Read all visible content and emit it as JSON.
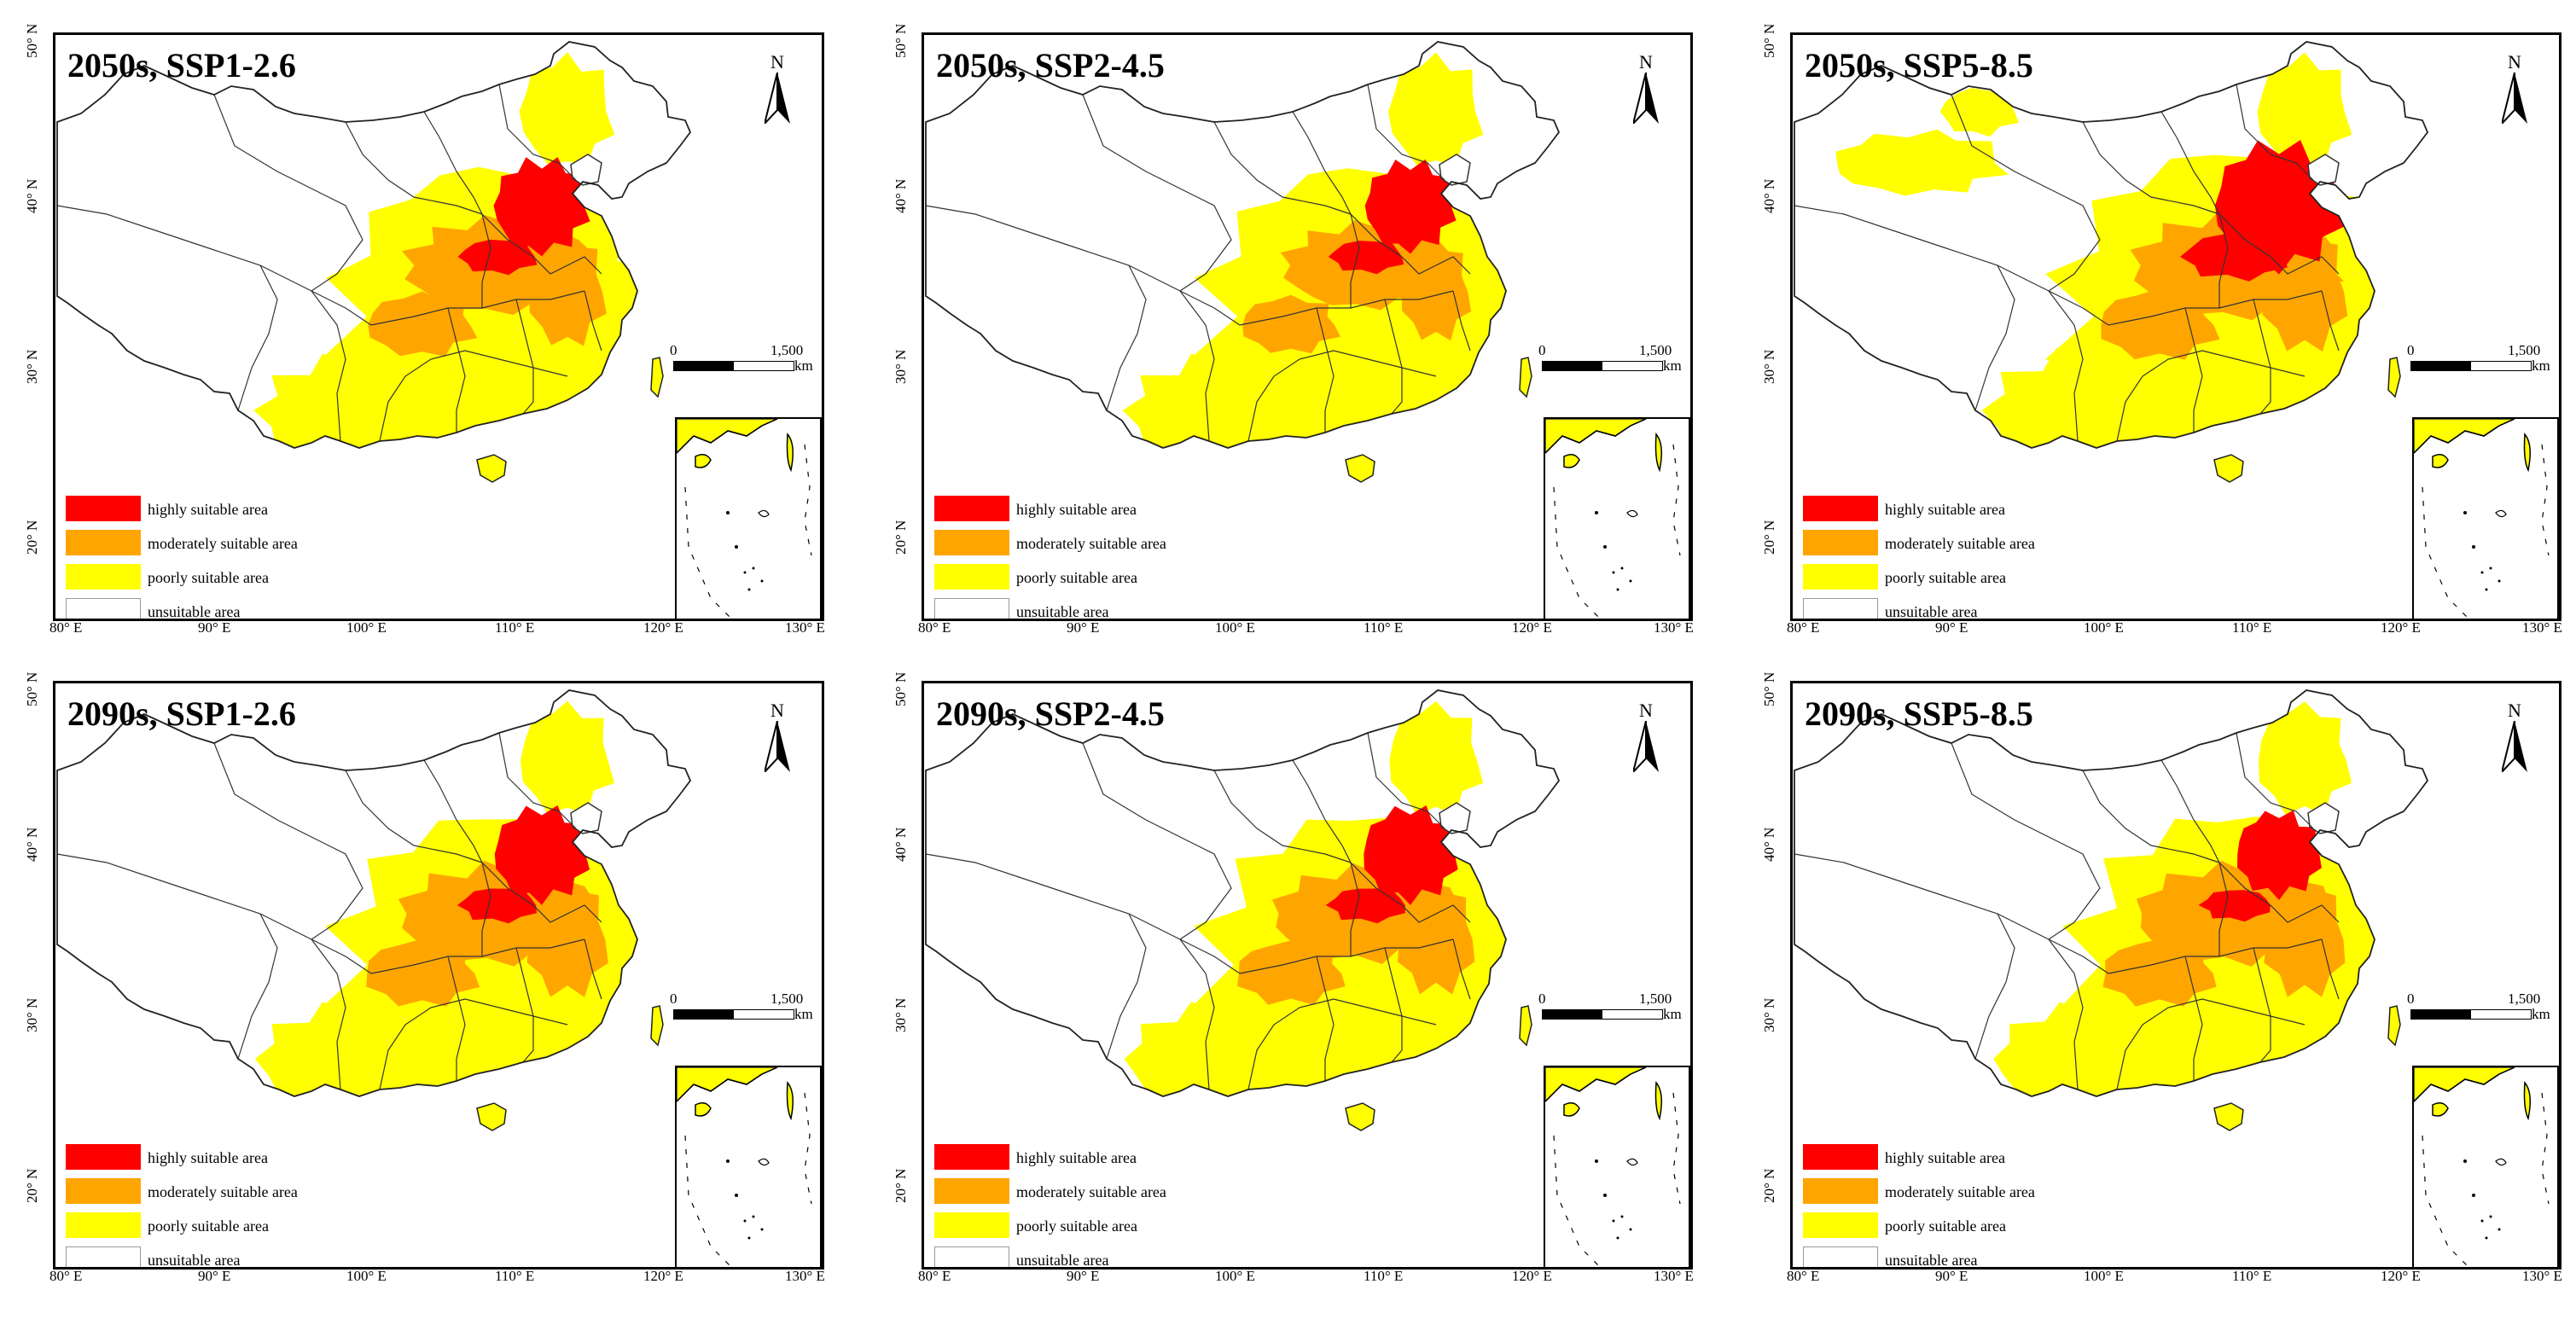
{
  "figure": {
    "panels": [
      {
        "title": "2050s, SSP1-2.6",
        "decade": "2050s",
        "scenario": "SSP1-2.6",
        "high_extent": 1.0,
        "moderate_extent": 1.0,
        "poor_extent": 1.0,
        "xinjiang_patch": 0.0
      },
      {
        "title": "2050s, SSP2-4.5",
        "decade": "2050s",
        "scenario": "SSP2-4.5",
        "high_extent": 0.95,
        "moderate_extent": 0.9,
        "poor_extent": 1.0,
        "xinjiang_patch": 0.0
      },
      {
        "title": "2050s, SSP5-8.5",
        "decade": "2050s",
        "scenario": "SSP5-8.5",
        "high_extent": 1.35,
        "moderate_extent": 1.1,
        "poor_extent": 1.1,
        "xinjiang_patch": 1.0
      },
      {
        "title": "2090s, SSP1-2.6",
        "decade": "2090s",
        "scenario": "SSP1-2.6",
        "high_extent": 1.0,
        "moderate_extent": 1.05,
        "poor_extent": 1.0,
        "xinjiang_patch": 0.0
      },
      {
        "title": "2090s, SSP2-4.5",
        "decade": "2090s",
        "scenario": "SSP2-4.5",
        "high_extent": 1.0,
        "moderate_extent": 1.0,
        "poor_extent": 1.0,
        "xinjiang_patch": 0.0
      },
      {
        "title": "2090s, SSP5-8.5",
        "decade": "2090s",
        "scenario": "SSP5-8.5",
        "high_extent": 0.9,
        "moderate_extent": 1.05,
        "poor_extent": 1.0,
        "xinjiang_patch": 0.0
      }
    ],
    "legend": [
      {
        "label": "highly suitable area",
        "color": "#ff0000"
      },
      {
        "label": "moderately suitable area",
        "color": "#ffa500"
      },
      {
        "label": "poorly suitable area",
        "color": "#ffff00"
      },
      {
        "label": "unsuitable area",
        "color": "#ffffff"
      }
    ],
    "north_arrow": "N",
    "scale_bar": {
      "start": "0",
      "end": "1,500",
      "unit": "km"
    },
    "scale_bar_alt_end": "1,500",
    "lat_ticks": [
      "50° N",
      "40° N",
      "30° N",
      "20° N"
    ],
    "lon_ticks": [
      "80° E",
      "90° E",
      "100° E",
      "110° E",
      "120° E",
      "130° E"
    ],
    "colors": {
      "high": "#ff0000",
      "moderate": "#ffa500",
      "poor": "#ffff00",
      "border": "#333333"
    }
  }
}
